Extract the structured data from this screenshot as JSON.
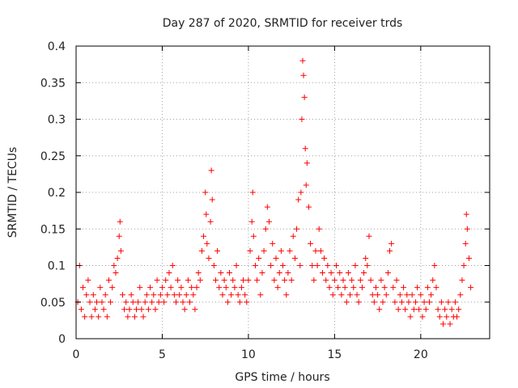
{
  "chart_data": {
    "type": "scatter",
    "title": "Day 287 of 2020, SRMTID for receiver trds",
    "xlabel": "GPS time / hours",
    "ylabel": "SRMTID / TECUs",
    "xlim": [
      0,
      24
    ],
    "ylim": [
      0,
      0.4
    ],
    "xticks": [
      {
        "value": 0,
        "label": "0"
      },
      {
        "value": 5,
        "label": "5"
      },
      {
        "value": 10,
        "label": "10"
      },
      {
        "value": 15,
        "label": "15"
      },
      {
        "value": 20,
        "label": "20"
      }
    ],
    "yticks": [
      {
        "value": 0,
        "label": "0"
      },
      {
        "value": 0.05,
        "label": "0.05"
      },
      {
        "value": 0.1,
        "label": "0.1"
      },
      {
        "value": 0.15,
        "label": "0.15"
      },
      {
        "value": 0.2,
        "label": "0.2"
      },
      {
        "value": 0.25,
        "label": "0.25"
      },
      {
        "value": 0.3,
        "label": "0.3"
      },
      {
        "value": 0.35,
        "label": "0.35"
      },
      {
        "value": 0.4,
        "label": "0.4"
      }
    ],
    "grid": true,
    "marker": "+",
    "series": [
      {
        "name": "SRMTID",
        "color": "#ff0000",
        "points": [
          [
            0.1,
            0.05
          ],
          [
            0.2,
            0.1
          ],
          [
            0.3,
            0.04
          ],
          [
            0.4,
            0.07
          ],
          [
            0.5,
            0.03
          ],
          [
            0.6,
            0.06
          ],
          [
            0.7,
            0.08
          ],
          [
            0.8,
            0.05
          ],
          [
            0.9,
            0.03
          ],
          [
            1.0,
            0.06
          ],
          [
            1.1,
            0.04
          ],
          [
            1.2,
            0.05
          ],
          [
            1.3,
            0.03
          ],
          [
            1.4,
            0.07
          ],
          [
            1.5,
            0.05
          ],
          [
            1.6,
            0.04
          ],
          [
            1.7,
            0.06
          ],
          [
            1.8,
            0.03
          ],
          [
            1.9,
            0.08
          ],
          [
            2.0,
            0.05
          ],
          [
            2.1,
            0.07
          ],
          [
            2.2,
            0.1
          ],
          [
            2.3,
            0.09
          ],
          [
            2.4,
            0.11
          ],
          [
            2.5,
            0.14
          ],
          [
            2.55,
            0.16
          ],
          [
            2.6,
            0.12
          ],
          [
            2.7,
            0.06
          ],
          [
            2.8,
            0.04
          ],
          [
            2.9,
            0.05
          ],
          [
            3.0,
            0.03
          ],
          [
            3.1,
            0.04
          ],
          [
            3.2,
            0.06
          ],
          [
            3.3,
            0.05
          ],
          [
            3.4,
            0.03
          ],
          [
            3.5,
            0.04
          ],
          [
            3.6,
            0.05
          ],
          [
            3.7,
            0.07
          ],
          [
            3.8,
            0.04
          ],
          [
            3.9,
            0.03
          ],
          [
            4.0,
            0.05
          ],
          [
            4.1,
            0.06
          ],
          [
            4.2,
            0.04
          ],
          [
            4.3,
            0.07
          ],
          [
            4.4,
            0.05
          ],
          [
            4.5,
            0.06
          ],
          [
            4.6,
            0.04
          ],
          [
            4.7,
            0.08
          ],
          [
            4.8,
            0.05
          ],
          [
            4.9,
            0.06
          ],
          [
            5.0,
            0.07
          ],
          [
            5.1,
            0.05
          ],
          [
            5.2,
            0.08
          ],
          [
            5.3,
            0.06
          ],
          [
            5.4,
            0.09
          ],
          [
            5.5,
            0.07
          ],
          [
            5.6,
            0.1
          ],
          [
            5.7,
            0.06
          ],
          [
            5.8,
            0.05
          ],
          [
            5.9,
            0.08
          ],
          [
            6.0,
            0.06
          ],
          [
            6.1,
            0.07
          ],
          [
            6.2,
            0.05
          ],
          [
            6.3,
            0.04
          ],
          [
            6.4,
            0.06
          ],
          [
            6.5,
            0.08
          ],
          [
            6.6,
            0.05
          ],
          [
            6.7,
            0.07
          ],
          [
            6.8,
            0.06
          ],
          [
            6.9,
            0.04
          ],
          [
            7.0,
            0.07
          ],
          [
            7.1,
            0.09
          ],
          [
            7.2,
            0.08
          ],
          [
            7.3,
            0.12
          ],
          [
            7.4,
            0.14
          ],
          [
            7.5,
            0.2
          ],
          [
            7.55,
            0.17
          ],
          [
            7.6,
            0.13
          ],
          [
            7.7,
            0.11
          ],
          [
            7.8,
            0.16
          ],
          [
            7.85,
            0.23
          ],
          [
            7.9,
            0.19
          ],
          [
            8.0,
            0.1
          ],
          [
            8.1,
            0.08
          ],
          [
            8.2,
            0.12
          ],
          [
            8.3,
            0.07
          ],
          [
            8.4,
            0.09
          ],
          [
            8.5,
            0.06
          ],
          [
            8.6,
            0.08
          ],
          [
            8.7,
            0.07
          ],
          [
            8.8,
            0.05
          ],
          [
            8.9,
            0.09
          ],
          [
            9.0,
            0.06
          ],
          [
            9.1,
            0.08
          ],
          [
            9.2,
            0.07
          ],
          [
            9.3,
            0.1
          ],
          [
            9.4,
            0.06
          ],
          [
            9.5,
            0.05
          ],
          [
            9.6,
            0.07
          ],
          [
            9.7,
            0.08
          ],
          [
            9.8,
            0.06
          ],
          [
            9.9,
            0.05
          ],
          [
            10.0,
            0.08
          ],
          [
            10.1,
            0.12
          ],
          [
            10.2,
            0.16
          ],
          [
            10.25,
            0.2
          ],
          [
            10.3,
            0.14
          ],
          [
            10.4,
            0.1
          ],
          [
            10.5,
            0.08
          ],
          [
            10.6,
            0.11
          ],
          [
            10.7,
            0.06
          ],
          [
            10.8,
            0.09
          ],
          [
            10.9,
            0.12
          ],
          [
            11.0,
            0.15
          ],
          [
            11.1,
            0.18
          ],
          [
            11.2,
            0.16
          ],
          [
            11.3,
            0.1
          ],
          [
            11.4,
            0.13
          ],
          [
            11.5,
            0.08
          ],
          [
            11.6,
            0.11
          ],
          [
            11.7,
            0.07
          ],
          [
            11.8,
            0.09
          ],
          [
            11.9,
            0.12
          ],
          [
            12.0,
            0.1
          ],
          [
            12.1,
            0.08
          ],
          [
            12.2,
            0.06
          ],
          [
            12.3,
            0.09
          ],
          [
            12.4,
            0.12
          ],
          [
            12.5,
            0.08
          ],
          [
            12.6,
            0.14
          ],
          [
            12.7,
            0.11
          ],
          [
            12.8,
            0.15
          ],
          [
            12.9,
            0.19
          ],
          [
            13.0,
            0.1
          ],
          [
            13.05,
            0.2
          ],
          [
            13.1,
            0.3
          ],
          [
            13.15,
            0.38
          ],
          [
            13.2,
            0.36
          ],
          [
            13.25,
            0.33
          ],
          [
            13.3,
            0.26
          ],
          [
            13.35,
            0.21
          ],
          [
            13.4,
            0.24
          ],
          [
            13.5,
            0.18
          ],
          [
            13.6,
            0.13
          ],
          [
            13.7,
            0.1
          ],
          [
            13.8,
            0.08
          ],
          [
            13.9,
            0.12
          ],
          [
            14.0,
            0.1
          ],
          [
            14.1,
            0.15
          ],
          [
            14.2,
            0.12
          ],
          [
            14.3,
            0.09
          ],
          [
            14.4,
            0.11
          ],
          [
            14.5,
            0.08
          ],
          [
            14.6,
            0.1
          ],
          [
            14.7,
            0.07
          ],
          [
            14.8,
            0.09
          ],
          [
            14.9,
            0.06
          ],
          [
            15.0,
            0.08
          ],
          [
            15.1,
            0.1
          ],
          [
            15.2,
            0.07
          ],
          [
            15.3,
            0.09
          ],
          [
            15.4,
            0.06
          ],
          [
            15.5,
            0.08
          ],
          [
            15.6,
            0.07
          ],
          [
            15.7,
            0.05
          ],
          [
            15.8,
            0.09
          ],
          [
            15.9,
            0.06
          ],
          [
            16.0,
            0.08
          ],
          [
            16.1,
            0.07
          ],
          [
            16.2,
            0.1
          ],
          [
            16.3,
            0.06
          ],
          [
            16.4,
            0.05
          ],
          [
            16.5,
            0.08
          ],
          [
            16.6,
            0.07
          ],
          [
            16.7,
            0.09
          ],
          [
            16.8,
            0.11
          ],
          [
            16.9,
            0.1
          ],
          [
            17.0,
            0.14
          ],
          [
            17.1,
            0.08
          ],
          [
            17.2,
            0.06
          ],
          [
            17.3,
            0.05
          ],
          [
            17.4,
            0.07
          ],
          [
            17.5,
            0.06
          ],
          [
            17.6,
            0.04
          ],
          [
            17.7,
            0.08
          ],
          [
            17.8,
            0.05
          ],
          [
            17.9,
            0.07
          ],
          [
            18.0,
            0.06
          ],
          [
            18.1,
            0.09
          ],
          [
            18.2,
            0.12
          ],
          [
            18.3,
            0.13
          ],
          [
            18.4,
            0.07
          ],
          [
            18.5,
            0.05
          ],
          [
            18.6,
            0.08
          ],
          [
            18.7,
            0.04
          ],
          [
            18.8,
            0.06
          ],
          [
            18.9,
            0.05
          ],
          [
            19.0,
            0.07
          ],
          [
            19.1,
            0.04
          ],
          [
            19.2,
            0.06
          ],
          [
            19.3,
            0.05
          ],
          [
            19.4,
            0.03
          ],
          [
            19.5,
            0.06
          ],
          [
            19.6,
            0.04
          ],
          [
            19.7,
            0.05
          ],
          [
            19.8,
            0.07
          ],
          [
            19.9,
            0.04
          ],
          [
            20.0,
            0.06
          ],
          [
            20.1,
            0.03
          ],
          [
            20.2,
            0.05
          ],
          [
            20.3,
            0.04
          ],
          [
            20.4,
            0.07
          ],
          [
            20.5,
            0.05
          ],
          [
            20.6,
            0.06
          ],
          [
            20.7,
            0.08
          ],
          [
            20.8,
            0.1
          ],
          [
            20.9,
            0.07
          ],
          [
            21.0,
            0.04
          ],
          [
            21.1,
            0.03
          ],
          [
            21.2,
            0.05
          ],
          [
            21.3,
            0.02
          ],
          [
            21.4,
            0.04
          ],
          [
            21.5,
            0.03
          ],
          [
            21.6,
            0.05
          ],
          [
            21.7,
            0.02
          ],
          [
            21.8,
            0.04
          ],
          [
            21.9,
            0.03
          ],
          [
            22.0,
            0.05
          ],
          [
            22.1,
            0.03
          ],
          [
            22.2,
            0.04
          ],
          [
            22.3,
            0.06
          ],
          [
            22.4,
            0.08
          ],
          [
            22.5,
            0.1
          ],
          [
            22.6,
            0.13
          ],
          [
            22.65,
            0.17
          ],
          [
            22.7,
            0.15
          ],
          [
            22.8,
            0.11
          ],
          [
            22.9,
            0.07
          ]
        ]
      }
    ]
  }
}
